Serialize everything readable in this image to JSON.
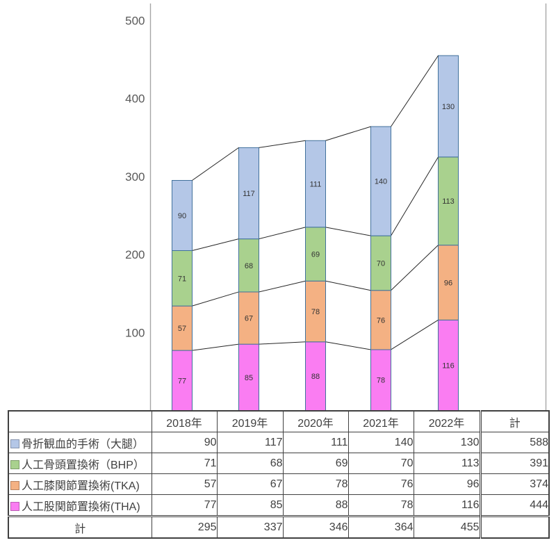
{
  "chart_data": {
    "type": "bar",
    "stacked": true,
    "title": "",
    "xlabel": "",
    "ylabel": "",
    "categories": [
      "2018年",
      "2019年",
      "2020年",
      "2021年",
      "2022年"
    ],
    "series": [
      {
        "key": "tha",
        "name": "人工股関節置換術(THA)",
        "values": [
          77,
          85,
          88,
          78,
          116
        ],
        "total": 444,
        "fill": "#FA7DF2"
      },
      {
        "key": "tka",
        "name": "人工膝関節置換術(TKA)",
        "values": [
          57,
          67,
          78,
          76,
          96
        ],
        "total": 374,
        "fill": "#F4B183"
      },
      {
        "key": "bhp",
        "name": "人工骨頭置換術（BHP）",
        "values": [
          71,
          68,
          69,
          70,
          113
        ],
        "total": 391,
        "fill": "#A9D18E"
      },
      {
        "key": "fracture",
        "name": "骨折観血的手術（大腿）",
        "values": [
          90,
          117,
          111,
          140,
          130
        ],
        "total": 588,
        "fill": "#B4C7E7"
      }
    ],
    "column_totals": [
      295,
      337,
      346,
      364,
      455
    ],
    "y_ticks": [
      100,
      200,
      300,
      400,
      500
    ],
    "ylim": [
      0,
      500
    ],
    "grid": false,
    "legend_position": "table-below",
    "connector_lines": true,
    "bar_border_color": "#41719C",
    "connector_color": "#262626",
    "axis_line_color": "#A6A6A6",
    "tick_label_color": "#595959"
  },
  "table": {
    "header": [
      "",
      "2018年",
      "2019年",
      "2020年",
      "2021年",
      "2022年",
      "計"
    ],
    "rows": [
      {
        "label": "骨折観血的手術（大腿）",
        "swatch": "#B4C7E7",
        "values": [
          90,
          117,
          111,
          140,
          130
        ],
        "total": "588"
      },
      {
        "label": "人工骨頭置換術（BHP）",
        "swatch": "#A9D18E",
        "values": [
          71,
          68,
          69,
          70,
          113
        ],
        "total": "391"
      },
      {
        "label": "人工膝関節置換術(TKA)",
        "swatch": "#F4B183",
        "values": [
          57,
          67,
          78,
          76,
          96
        ],
        "total": "374"
      },
      {
        "label": "人工股関節置換術(THA)",
        "swatch": "#FA7DF2",
        "values": [
          77,
          85,
          88,
          78,
          116
        ],
        "total": "444"
      }
    ],
    "total_row": {
      "label": "計",
      "values": [
        295,
        337,
        346,
        364,
        455
      ],
      "total": ""
    }
  }
}
